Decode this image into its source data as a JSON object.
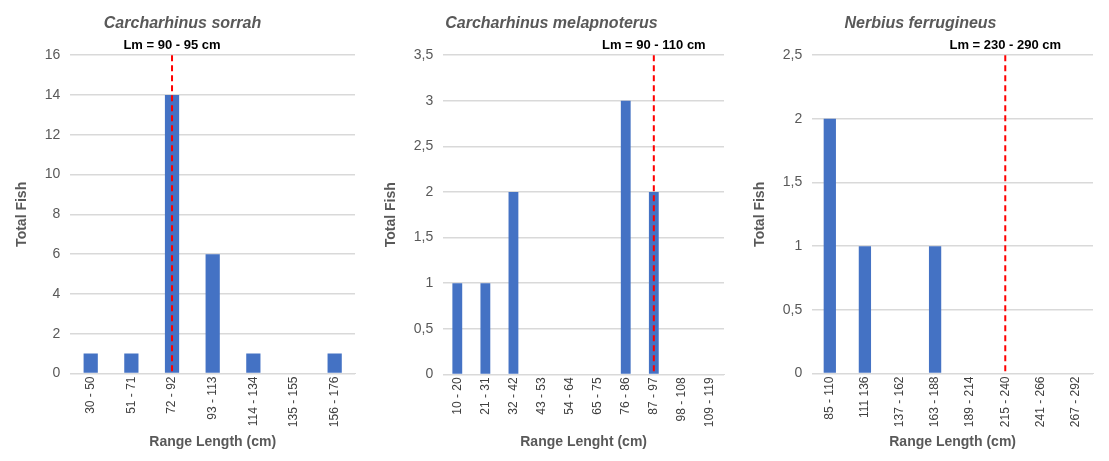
{
  "chart_data": [
    {
      "type": "bar",
      "title": "Carcharhinus sorrah",
      "xlabel": "Range Length (cm)",
      "ylabel": "Total Fish",
      "categories": [
        "30 - 50",
        "51 - 71",
        "72 - 92",
        "93 - 113",
        "114 - 134",
        "135 - 155",
        "156 - 176"
      ],
      "values": [
        1,
        1,
        14,
        6,
        1,
        0,
        1
      ],
      "color": "#4472c4",
      "ylim": [
        0,
        16
      ],
      "yticks": [
        0,
        2,
        4,
        6,
        8,
        10,
        12,
        14,
        16
      ],
      "grid": "y",
      "ref_lines": [
        {
          "axis": "x",
          "value": "72 - 92",
          "label": "Lm = 90 - 95 cm",
          "color": "#ff0000",
          "line_style": "dashed"
        }
      ]
    },
    {
      "type": "bar",
      "title": "Carcharhinus melapnoterus",
      "xlabel": "Range Lenght (cm)",
      "ylabel": "Total Fish",
      "categories": [
        "10 - 20",
        "21 - 31",
        "32 - 42",
        "43 - 53",
        "54 - 64",
        "65 - 75",
        "76 - 86",
        "87 - 97",
        "98 - 108",
        "109 - 119"
      ],
      "values": [
        1,
        1,
        2,
        0,
        0,
        0,
        3,
        2,
        0,
        0
      ],
      "color": "#4472c4",
      "ylim": [
        0,
        3.5
      ],
      "yticks": [
        0,
        {
          "value": 0.5,
          "label": "0,5"
        },
        1,
        {
          "value": 1.5,
          "label": "1,5"
        },
        2,
        {
          "value": 2.5,
          "label": "2,5"
        },
        3,
        {
          "value": 3.5,
          "label": "3,5"
        }
      ],
      "grid": "y",
      "ref_lines": [
        {
          "axis": "x",
          "value": "87 - 97",
          "label": "Lm = 90 - 110 cm",
          "color": "#ff0000",
          "line_style": "dashed"
        }
      ]
    },
    {
      "type": "bar",
      "title": "Nerbius ferrugineus",
      "xlabel": "Range Length (cm)",
      "ylabel": "Total Fish",
      "categories": [
        "85 - 110",
        "111 136",
        "137 - 162",
        "163 - 188",
        "189 - 214",
        "215 - 240",
        "241 - 266",
        "267 - 292"
      ],
      "values": [
        2,
        1,
        0,
        1,
        0,
        0,
        0,
        0
      ],
      "color": "#4472c4",
      "ylim": [
        0,
        2.5
      ],
      "yticks": [
        0,
        {
          "value": 0.5,
          "label": "0,5"
        },
        1,
        {
          "value": 1.5,
          "label": "1,5"
        },
        2,
        {
          "value": 2.5,
          "label": "2,5"
        }
      ],
      "grid": "y",
      "ref_lines": [
        {
          "axis": "x",
          "value": "215 - 240",
          "label": "Lm = 230 - 290 cm",
          "color": "#ff0000",
          "line_style": "dashed"
        }
      ]
    }
  ]
}
